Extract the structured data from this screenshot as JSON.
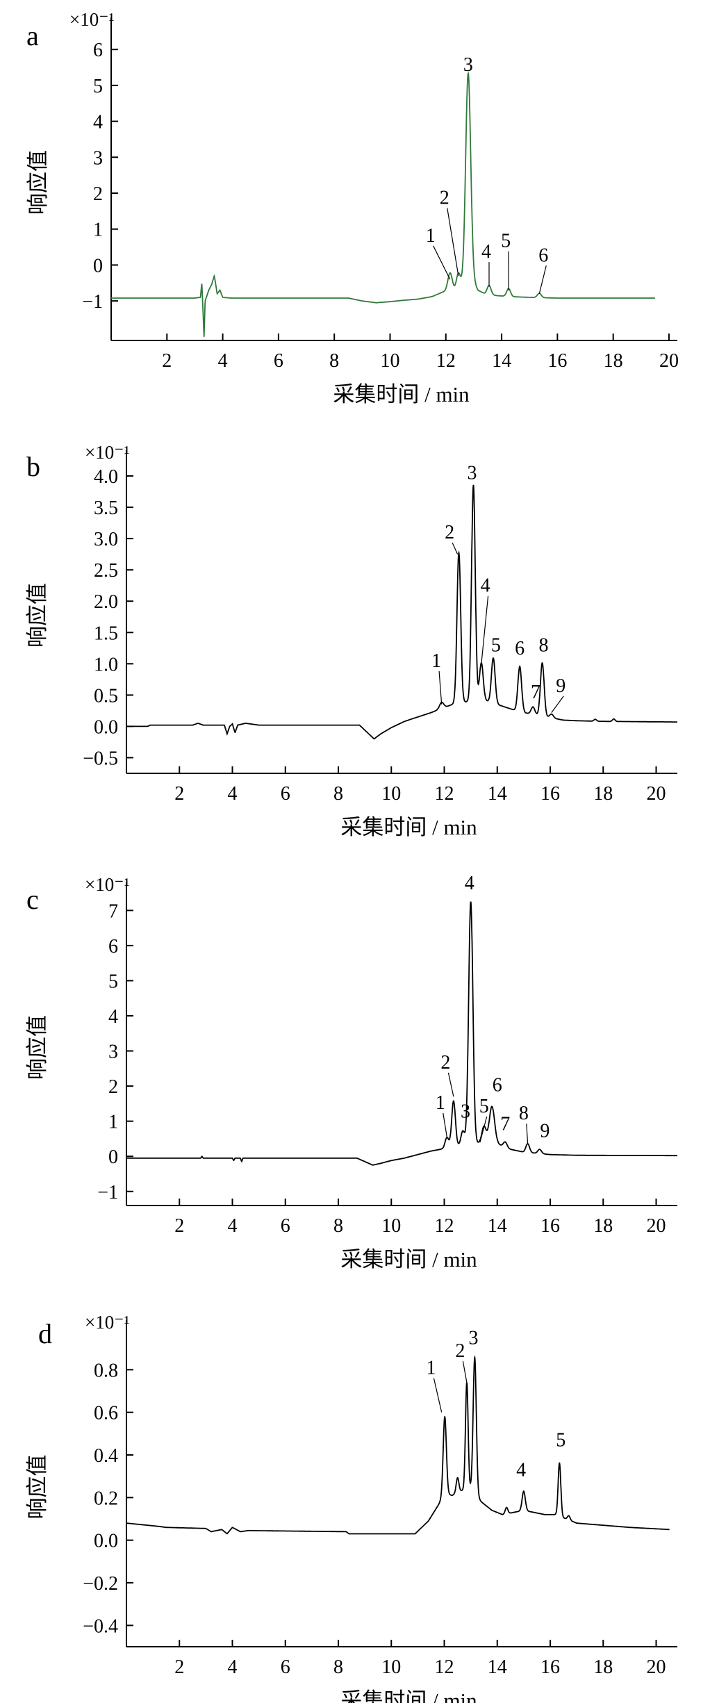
{
  "figure": {
    "type": "chromatogram-panels"
  },
  "chart_data": [
    {
      "type": "line",
      "panel": "a",
      "multiplier": "×10⁻¹",
      "xlabel": "采集时间 / min",
      "ylabel": "响应值",
      "xlim": [
        0,
        20.3
      ],
      "ylim": [
        -2.1,
        6.7
      ],
      "xticks": [
        2,
        4,
        6,
        8,
        10,
        12,
        14,
        16,
        18,
        20
      ],
      "yticks": [
        -1,
        0,
        1,
        2,
        3,
        4,
        5,
        6
      ],
      "line_color": "#2f7a3a",
      "baseline": [
        [
          0,
          -0.92
        ],
        [
          3.0,
          -0.92
        ],
        [
          3.2,
          -0.9
        ],
        [
          3.25,
          -0.5
        ],
        [
          3.3,
          -1.4
        ],
        [
          3.33,
          -2.0
        ],
        [
          3.37,
          -1.0
        ],
        [
          3.5,
          -0.7
        ],
        [
          3.6,
          -0.55
        ],
        [
          3.7,
          -0.3
        ],
        [
          3.8,
          -0.8
        ],
        [
          3.9,
          -0.7
        ],
        [
          4.0,
          -0.9
        ],
        [
          4.3,
          -0.92
        ],
        [
          8.5,
          -0.92
        ],
        [
          9.0,
          -1.0
        ],
        [
          9.5,
          -1.05
        ],
        [
          10.0,
          -1.02
        ],
        [
          10.5,
          -0.98
        ],
        [
          11.0,
          -0.95
        ],
        [
          11.5,
          -0.88
        ],
        [
          11.9,
          -0.75
        ],
        [
          12.3,
          -0.7
        ],
        [
          12.6,
          -0.55
        ],
        [
          12.95,
          -0.4
        ],
        [
          13.15,
          -0.7
        ],
        [
          13.4,
          -0.8
        ],
        [
          13.8,
          -0.85
        ],
        [
          14.3,
          -0.88
        ],
        [
          15.0,
          -0.9
        ],
        [
          16.0,
          -0.92
        ],
        [
          19.5,
          -0.92
        ]
      ],
      "peaks": [
        {
          "label": "1",
          "x": 12.15,
          "height": 0.5,
          "width": 0.08
        },
        {
          "label": "2",
          "x": 12.45,
          "height": 0.4,
          "width": 0.07
        },
        {
          "label": "3",
          "x": 12.8,
          "height": 5.8,
          "width": 0.09
        },
        {
          "label": "4",
          "x": 13.55,
          "height": 0.25,
          "width": 0.07
        },
        {
          "label": "5",
          "x": 14.25,
          "height": 0.22,
          "width": 0.07
        },
        {
          "label": "6",
          "x": 15.35,
          "height": 0.12,
          "width": 0.07
        }
      ],
      "annotations": [
        {
          "text": "1",
          "tx": 11.45,
          "ty": 0.65,
          "px": 12.15,
          "py": -0.4
        },
        {
          "text": "2",
          "tx": 11.95,
          "ty": 1.7,
          "px": 12.45,
          "py": -0.3
        },
        {
          "text": "3",
          "tx": 12.8,
          "ty": 5.4,
          "px": null,
          "py": null
        },
        {
          "text": "4",
          "tx": 13.45,
          "ty": 0.2,
          "px": 13.55,
          "py": -0.6
        },
        {
          "text": "5",
          "tx": 14.15,
          "ty": 0.5,
          "px": 14.25,
          "py": -0.7
        },
        {
          "text": "6",
          "tx": 15.5,
          "ty": 0.1,
          "px": 15.35,
          "py": -0.8
        }
      ]
    },
    {
      "type": "line",
      "panel": "b",
      "multiplier": "×10⁻¹",
      "xlabel": "采集时间 / min",
      "ylabel": "响应值",
      "xlim": [
        0,
        20.8
      ],
      "ylim": [
        -0.75,
        4.3
      ],
      "xticks": [
        2,
        4,
        6,
        8,
        10,
        12,
        14,
        16,
        18,
        20
      ],
      "yticks": [
        -0.5,
        0,
        0.5,
        1.0,
        1.5,
        2.0,
        2.5,
        3.0,
        3.5,
        4.0
      ],
      "yticklabels": [
        "−0.5",
        "0.0",
        "0.5",
        "1.0",
        "1.5",
        "2.0",
        "2.5",
        "3.0",
        "3.5",
        "4.0"
      ],
      "line_color": "#000000",
      "baseline": [
        [
          0,
          0.0
        ],
        [
          0.8,
          0.0
        ],
        [
          0.9,
          0.02
        ],
        [
          2.5,
          0.02
        ],
        [
          2.7,
          0.05
        ],
        [
          2.9,
          0.02
        ],
        [
          3.7,
          0.02
        ],
        [
          3.8,
          -0.12
        ],
        [
          3.9,
          0.0
        ],
        [
          4.0,
          0.04
        ],
        [
          4.1,
          -0.1
        ],
        [
          4.2,
          0.02
        ],
        [
          4.5,
          0.05
        ],
        [
          5.0,
          0.02
        ],
        [
          8.8,
          0.02
        ],
        [
          9.1,
          -0.1
        ],
        [
          9.35,
          -0.2
        ],
        [
          9.6,
          -0.12
        ],
        [
          10.0,
          -0.02
        ],
        [
          10.5,
          0.08
        ],
        [
          11.0,
          0.15
        ],
        [
          11.5,
          0.22
        ],
        [
          12.0,
          0.3
        ],
        [
          12.3,
          0.35
        ],
        [
          12.6,
          0.38
        ],
        [
          13.0,
          0.4
        ],
        [
          13.5,
          0.42
        ],
        [
          14.0,
          0.35
        ],
        [
          14.5,
          0.28
        ],
        [
          15.0,
          0.22
        ],
        [
          15.5,
          0.18
        ],
        [
          16.0,
          0.14
        ],
        [
          16.5,
          0.1
        ],
        [
          17.0,
          0.09
        ],
        [
          18.0,
          0.08
        ],
        [
          20.8,
          0.07
        ]
      ],
      "peaks": [
        {
          "label": "1",
          "x": 11.9,
          "height": 0.1,
          "width": 0.08
        },
        {
          "label": "2",
          "x": 12.55,
          "height": 2.4,
          "width": 0.07
        },
        {
          "label": "3",
          "x": 13.1,
          "height": 3.45,
          "width": 0.07
        },
        {
          "label": "4",
          "x": 13.4,
          "height": 0.6,
          "width": 0.07
        },
        {
          "label": "5",
          "x": 13.85,
          "height": 0.72,
          "width": 0.07
        },
        {
          "label": "6",
          "x": 14.85,
          "height": 0.72,
          "width": 0.07
        },
        {
          "label": "7",
          "x": 15.35,
          "height": 0.12,
          "width": 0.07
        },
        {
          "label": "8",
          "x": 15.7,
          "height": 0.85,
          "width": 0.07
        },
        {
          "label": "9",
          "x": 16.05,
          "height": 0.06,
          "width": 0.07
        },
        {
          "label": "",
          "x": 17.7,
          "height": 0.03,
          "width": 0.05
        },
        {
          "label": "",
          "x": 18.4,
          "height": 0.04,
          "width": 0.05
        }
      ],
      "annotations": [
        {
          "text": "1",
          "tx": 11.7,
          "ty": 0.95,
          "px": 11.9,
          "py": 0.35
        },
        {
          "text": "2",
          "tx": 12.2,
          "ty": 3.0,
          "px": 12.5,
          "py": 2.75
        },
        {
          "text": "3",
          "tx": 13.05,
          "ty": 3.95,
          "px": null,
          "py": null
        },
        {
          "text": "4",
          "tx": 13.55,
          "ty": 2.15,
          "px": 13.4,
          "py": 1.0
        },
        {
          "text": "5",
          "tx": 13.95,
          "ty": 1.2,
          "px": null,
          "py": null
        },
        {
          "text": "6",
          "tx": 14.85,
          "ty": 1.15,
          "px": null,
          "py": null
        },
        {
          "text": "7",
          "tx": 15.45,
          "ty": 0.45,
          "px": null,
          "py": null
        },
        {
          "text": "8",
          "tx": 15.75,
          "ty": 1.2,
          "px": null,
          "py": null
        },
        {
          "text": "9",
          "tx": 16.4,
          "ty": 0.55,
          "px": 16.05,
          "py": 0.22
        }
      ]
    },
    {
      "type": "line",
      "panel": "c",
      "multiplier": "×10⁻¹",
      "xlabel": "采集时间 / min",
      "ylabel": "响应值",
      "xlim": [
        0,
        20.8
      ],
      "ylim": [
        -1.4,
        7.6
      ],
      "xticks": [
        2,
        4,
        6,
        8,
        10,
        12,
        14,
        16,
        18,
        20
      ],
      "yticks": [
        -1,
        0,
        1,
        2,
        3,
        4,
        5,
        6,
        7
      ],
      "line_color": "#000000",
      "baseline": [
        [
          0,
          -0.05
        ],
        [
          2.8,
          -0.05
        ],
        [
          2.85,
          0.0
        ],
        [
          2.9,
          -0.05
        ],
        [
          4.0,
          -0.05
        ],
        [
          4.05,
          -0.12
        ],
        [
          4.1,
          -0.05
        ],
        [
          4.3,
          -0.05
        ],
        [
          4.35,
          -0.15
        ],
        [
          4.4,
          -0.05
        ],
        [
          8.7,
          -0.05
        ],
        [
          9.0,
          -0.15
        ],
        [
          9.3,
          -0.25
        ],
        [
          9.6,
          -0.2
        ],
        [
          10.0,
          -0.12
        ],
        [
          10.5,
          -0.05
        ],
        [
          11.0,
          0.05
        ],
        [
          11.5,
          0.15
        ],
        [
          12.0,
          0.22
        ],
        [
          12.5,
          0.3
        ],
        [
          13.0,
          0.35
        ],
        [
          13.5,
          0.4
        ],
        [
          14.0,
          0.35
        ],
        [
          14.5,
          0.2
        ],
        [
          15.0,
          0.12
        ],
        [
          16.0,
          0.05
        ],
        [
          17.0,
          0.03
        ],
        [
          20.8,
          0.02
        ]
      ],
      "peaks": [
        {
          "label": "1",
          "x": 12.1,
          "height": 0.3,
          "width": 0.07
        },
        {
          "label": "2",
          "x": 12.35,
          "height": 1.3,
          "width": 0.07
        },
        {
          "label": "3",
          "x": 12.7,
          "height": 0.4,
          "width": 0.07
        },
        {
          "label": "4",
          "x": 13.0,
          "height": 6.9,
          "width": 0.08
        },
        {
          "label": "5",
          "x": 13.5,
          "height": 0.45,
          "width": 0.08
        },
        {
          "label": "6",
          "x": 13.8,
          "height": 1.05,
          "width": 0.1
        },
        {
          "label": "7",
          "x": 14.3,
          "height": 0.15,
          "width": 0.07
        },
        {
          "label": "8",
          "x": 15.15,
          "height": 0.25,
          "width": 0.07
        },
        {
          "label": "9",
          "x": 15.6,
          "height": 0.12,
          "width": 0.07
        }
      ],
      "annotations": [
        {
          "text": "1",
          "tx": 11.85,
          "ty": 1.35,
          "px": 12.1,
          "py": 0.55
        },
        {
          "text": "2",
          "tx": 12.05,
          "ty": 2.5,
          "px": 12.35,
          "py": 1.7
        },
        {
          "text": "3",
          "tx": 12.8,
          "ty": 1.1,
          "px": null,
          "py": null
        },
        {
          "text": "4",
          "tx": 12.95,
          "ty": 7.6,
          "px": null,
          "py": null
        },
        {
          "text": "5",
          "tx": 13.5,
          "ty": 1.25,
          "px": 13.35,
          "py": 0.4
        },
        {
          "text": "6",
          "tx": 14.0,
          "ty": 1.85,
          "px": null,
          "py": null
        },
        {
          "text": "7",
          "tx": 14.3,
          "ty": 0.75,
          "px": null,
          "py": null
        },
        {
          "text": "8",
          "tx": 15.0,
          "ty": 1.05,
          "px": 15.15,
          "py": 0.35
        },
        {
          "text": "9",
          "tx": 15.8,
          "ty": 0.55,
          "px": null,
          "py": null
        }
      ]
    },
    {
      "type": "line",
      "panel": "d",
      "multiplier": "×10⁻¹",
      "xlabel": "采集时间 / min",
      "ylabel": "响应值",
      "xlim": [
        0,
        20.8
      ],
      "ylim": [
        -0.5,
        1.0
      ],
      "xticks": [
        2,
        4,
        6,
        8,
        10,
        12,
        14,
        16,
        18,
        20
      ],
      "yticks": [
        -0.4,
        -0.2,
        0.0,
        0.2,
        0.4,
        0.6,
        0.8
      ],
      "yticklabels": [
        "−0.4",
        "−0.2",
        "0.0",
        "0.2",
        "0.4",
        "0.6",
        "0.8"
      ],
      "line_color": "#000000",
      "baseline": [
        [
          0,
          0.08
        ],
        [
          1.2,
          0.065
        ],
        [
          1.5,
          0.06
        ],
        [
          3.0,
          0.055
        ],
        [
          3.2,
          0.04
        ],
        [
          3.6,
          0.05
        ],
        [
          3.8,
          0.03
        ],
        [
          4.0,
          0.06
        ],
        [
          4.3,
          0.04
        ],
        [
          4.6,
          0.045
        ],
        [
          8.3,
          0.04
        ],
        [
          8.4,
          0.03
        ],
        [
          10.9,
          0.03
        ],
        [
          11.4,
          0.09
        ],
        [
          11.8,
          0.17
        ],
        [
          12.0,
          0.22
        ],
        [
          12.3,
          0.21
        ],
        [
          12.6,
          0.23
        ],
        [
          12.8,
          0.24
        ],
        [
          13.0,
          0.24
        ],
        [
          13.4,
          0.18
        ],
        [
          13.8,
          0.14
        ],
        [
          14.2,
          0.12
        ],
        [
          14.6,
          0.13
        ],
        [
          15.0,
          0.14
        ],
        [
          15.4,
          0.13
        ],
        [
          15.8,
          0.12
        ],
        [
          16.2,
          0.12
        ],
        [
          16.6,
          0.1
        ],
        [
          17.0,
          0.08
        ],
        [
          17.5,
          0.075
        ],
        [
          18.0,
          0.07
        ],
        [
          19.0,
          0.06
        ],
        [
          20.5,
          0.05
        ]
      ],
      "peaks": [
        {
          "label": "1",
          "x": 12.02,
          "height": 0.36,
          "width": 0.06
        },
        {
          "label": "",
          "x": 12.5,
          "height": 0.07,
          "width": 0.05
        },
        {
          "label": "2",
          "x": 12.85,
          "height": 0.5,
          "width": 0.05
        },
        {
          "label": "3",
          "x": 13.15,
          "height": 0.64,
          "width": 0.06
        },
        {
          "label": "",
          "x": 14.35,
          "height": 0.03,
          "width": 0.05
        },
        {
          "label": "4",
          "x": 15.0,
          "height": 0.09,
          "width": 0.06
        },
        {
          "label": "5",
          "x": 16.35,
          "height": 0.25,
          "width": 0.05
        },
        {
          "label": "",
          "x": 16.7,
          "height": 0.02,
          "width": 0.05
        }
      ],
      "annotations": [
        {
          "text": "1",
          "tx": 11.5,
          "ty": 0.78,
          "px": 11.9,
          "py": 0.6
        },
        {
          "text": "2",
          "tx": 12.6,
          "ty": 0.86,
          "px": 12.85,
          "py": 0.74
        },
        {
          "text": "3",
          "tx": 13.1,
          "ty": 0.92,
          "px": null,
          "py": null
        },
        {
          "text": "4",
          "tx": 14.9,
          "ty": 0.3,
          "px": null,
          "py": null
        },
        {
          "text": "5",
          "tx": 16.4,
          "ty": 0.44,
          "px": null,
          "py": null
        }
      ]
    }
  ]
}
